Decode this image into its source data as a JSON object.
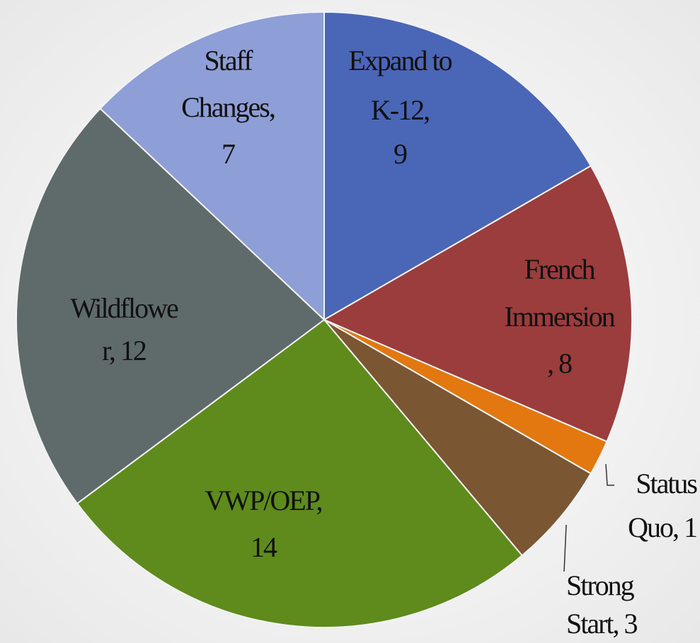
{
  "chart_data": {
    "type": "pie",
    "values": [
      9,
      8,
      1,
      3,
      14,
      12,
      7
    ],
    "value_labels": [
      [
        "Expand to",
        "K-12,",
        "9"
      ],
      [
        "French",
        "Immersion",
        ", 8"
      ],
      [
        "Status",
        "Quo, 1"
      ],
      [
        "Strong",
        "Start, 3"
      ],
      [
        "VWP/OEP,",
        "14"
      ],
      [
        "Wildflowe",
        "r, 12"
      ],
      [
        "Staff",
        "Changes,",
        "7"
      ]
    ],
    "colors": [
      "#4a66b6",
      "#9a3d3c",
      "#e2780f",
      "#7a5633",
      "#5e8b1c",
      "#5f6b6b",
      "#8e9ed6"
    ]
  }
}
